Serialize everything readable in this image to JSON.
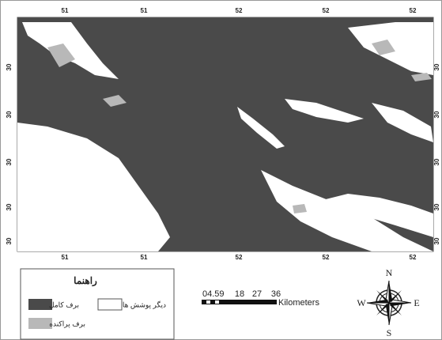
{
  "map": {
    "top_ticks": [
      "51",
      "51",
      "52",
      "52",
      "52"
    ],
    "bottom_ticks": [
      "51",
      "51",
      "52",
      "52",
      "52"
    ],
    "left_ticks": [
      "30",
      "30",
      "30",
      "30",
      "30"
    ],
    "right_ticks": [
      "30",
      "30",
      "30",
      "30",
      "30"
    ],
    "legend": {
      "title": "راهنما",
      "items": [
        "برف کامل",
        "دیگر پوشش ها",
        "برف پراکنده"
      ]
    },
    "scale": {
      "labels": [
        "04.59",
        "18",
        "27",
        "36"
      ],
      "unit": "Kilometers"
    },
    "compass": {
      "n": "N",
      "s": "S",
      "e": "E",
      "w": "W"
    }
  }
}
